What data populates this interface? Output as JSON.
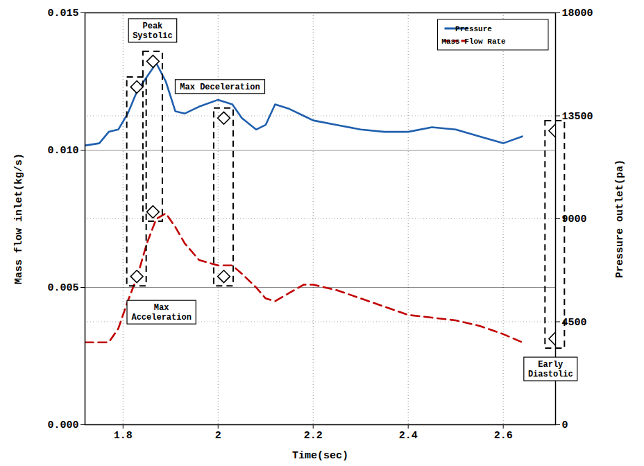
{
  "chart_data": {
    "type": "line",
    "x_label": "Time(sec)",
    "y_label": "Mass flow inlet(kg/s)",
    "y2_label": "Pressure outlet(pa)",
    "x": [
      1.72,
      1.75,
      1.77,
      1.79,
      1.81,
      1.83,
      1.85,
      1.87,
      1.89,
      1.91,
      1.93,
      1.96,
      2.0,
      2.03,
      2.05,
      2.08,
      2.1,
      2.12,
      2.15,
      2.18,
      2.2,
      2.25,
      2.3,
      2.35,
      2.4,
      2.45,
      2.5,
      2.55,
      2.6,
      2.64
    ],
    "series": [
      {
        "name": "Pressure",
        "color": "#1f5fae",
        "line_style": "solid",
        "axis": "y2",
        "values": [
          12200,
          12300,
          12800,
          12900,
          13600,
          14600,
          15200,
          15800,
          15000,
          13700,
          13600,
          13900,
          14200,
          14000,
          13400,
          12900,
          13100,
          14000,
          13800,
          13500,
          13300,
          13100,
          12900,
          12800,
          12800,
          13000,
          12900,
          12600,
          12300,
          12600
        ]
      },
      {
        "name": "Mass Flow Rate",
        "color": "#c00000",
        "line_style": "dashed",
        "values": [
          0.003,
          0.003,
          0.003,
          0.0035,
          0.0045,
          0.0054,
          0.0066,
          0.0075,
          0.0077,
          0.0072,
          0.0066,
          0.006,
          0.0058,
          0.0058,
          0.0055,
          0.005,
          0.0046,
          0.0045,
          0.0048,
          0.0051,
          0.0051,
          0.0049,
          0.0046,
          0.0043,
          0.004,
          0.0039,
          0.0038,
          0.0036,
          0.0033,
          0.003
        ]
      }
    ],
    "annotations": [
      {
        "text": "Max Acceleration",
        "x": 1.829,
        "pressure": 14760,
        "mass_flow": 0.0054
      },
      {
        "text": "Peak Systolic",
        "x": 1.863,
        "pressure": 15880,
        "mass_flow": 0.00775
      },
      {
        "text": "Max Deceleration",
        "x": 2.012,
        "pressure": 13400,
        "mass_flow": 0.0054
      },
      {
        "text": "Early Diastolic",
        "x": 2.709,
        "pressure": 12850,
        "mass_flow": 0.00313
      }
    ],
    "xlim": [
      1.72,
      2.71
    ],
    "xticks": [
      1.8,
      2,
      2.2,
      2.4,
      2.6
    ],
    "ylim": [
      0,
      0.015
    ],
    "yticks": [
      {
        "value": 0,
        "label": "0.000"
      },
      {
        "value": 0.005,
        "label": "0.005"
      },
      {
        "value": 0.01,
        "label": "0.010"
      },
      {
        "value": 0.015,
        "label": "0.015"
      }
    ],
    "y2lim": [
      0,
      18000
    ],
    "y2ticks": [
      0,
      4500,
      9000,
      13500,
      18000
    ],
    "marker": "diamond",
    "grid": true,
    "legend": "top-right"
  }
}
